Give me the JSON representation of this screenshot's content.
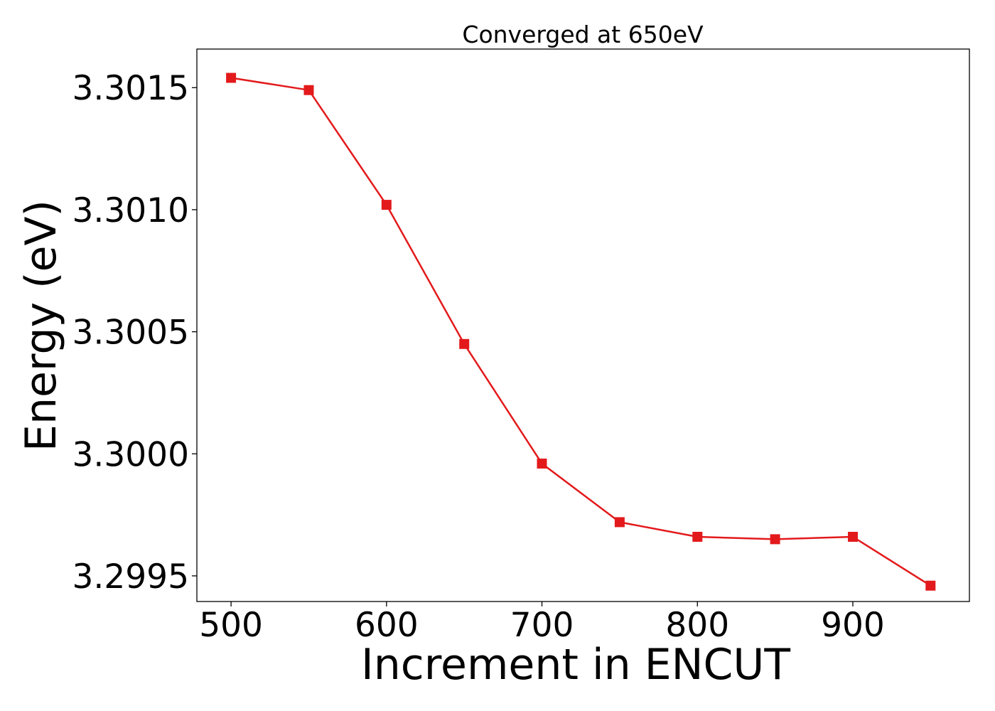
{
  "chart_data": {
    "type": "line",
    "title": "Converged at 650eV",
    "xlabel": "Increment in ENCUT",
    "ylabel": "Energy (eV)",
    "x": [
      500,
      550,
      600,
      650,
      700,
      750,
      800,
      850,
      900,
      950
    ],
    "series": [
      {
        "values": [
          3.30154,
          3.30149,
          3.30102,
          3.30045,
          3.29996,
          3.29972,
          3.29966,
          3.29965,
          3.29966,
          3.29946
        ],
        "color": "#e31a1c",
        "marker": "square"
      }
    ],
    "xlim": [
      478,
      975
    ],
    "ylim": [
      3.299395,
      3.301658
    ],
    "xticks": [
      500,
      600,
      700,
      800,
      900
    ],
    "xtick_labels": [
      "500",
      "600",
      "700",
      "800",
      "900"
    ],
    "yticks": [
      3.2995,
      3.3,
      3.3005,
      3.301,
      3.3015
    ],
    "ytick_labels": [
      "3.2995",
      "3.3000",
      "3.3005",
      "3.3010",
      "3.3015"
    ],
    "grid": false,
    "legend": "none"
  }
}
